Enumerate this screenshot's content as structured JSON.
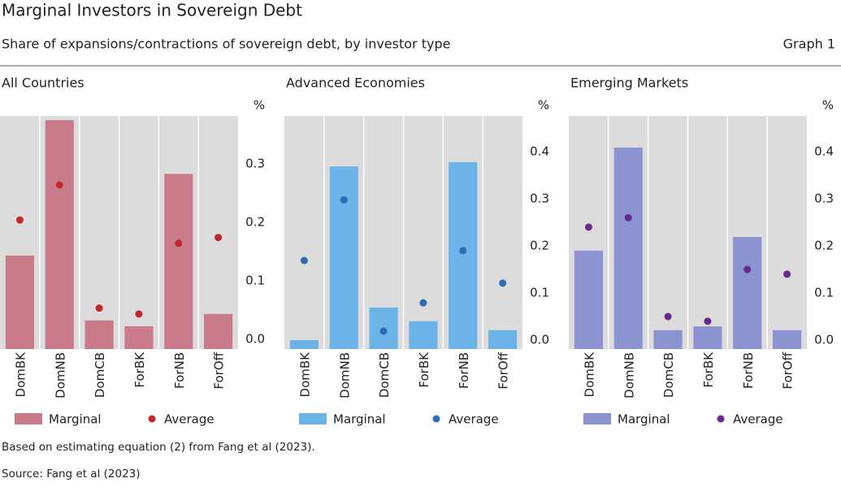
{
  "title": "Marginal Investors in Sovereign Debt",
  "subtitle": "Share of expansions/contractions of sovereign debt, by investor type",
  "graph_label": "Graph 1",
  "note": "Based on estimating equation (2) from Fang et al (2023).",
  "source": "Source: Fang et al (2023)",
  "chart_data": [
    {
      "type": "bar",
      "title": "All Countries",
      "y_unit": "%",
      "yaxis_side": "right",
      "categories": [
        "DomBK",
        "DomNB",
        "DomCB",
        "ForBK",
        "ForNB",
        "ForOff"
      ],
      "series": [
        {
          "name": "Marginal",
          "type": "bar",
          "color": "#c97b8a",
          "values": [
            0.143,
            0.375,
            0.032,
            0.022,
            0.283,
            0.043
          ]
        },
        {
          "name": "Average",
          "type": "dot",
          "color": "#c0282d",
          "values": [
            0.204,
            0.264,
            0.053,
            0.043,
            0.164,
            0.174
          ]
        }
      ],
      "ylim": [
        -0.017,
        0.382
      ],
      "yticks": [
        {
          "value": 0,
          "label": "0.0"
        },
        0.1,
        0.2,
        0.3
      ]
    },
    {
      "type": "bar",
      "title": "Advanced Economies",
      "y_unit": "%",
      "yaxis_side": "right",
      "categories": [
        "DomBK",
        "DomNB",
        "DomCB",
        "ForBK",
        "ForNB",
        "ForOff"
      ],
      "series": [
        {
          "name": "Marginal",
          "type": "bar",
          "color": "#6cb4e8",
          "values": [
            0.0,
            0.369,
            0.069,
            0.04,
            0.378,
            0.021
          ]
        },
        {
          "name": "Average",
          "type": "dot",
          "color": "#2e6db4",
          "values": [
            0.169,
            0.298,
            0.019,
            0.079,
            0.19,
            0.121
          ]
        }
      ],
      "ylim": [
        -0.019,
        0.476
      ],
      "yticks": [
        {
          "value": 0,
          "label": "0.0"
        },
        0.1,
        0.2,
        0.3,
        0.4
      ]
    },
    {
      "type": "bar",
      "title": "Emerging Markets",
      "y_unit": "%",
      "yaxis_side": "right",
      "categories": [
        "DomBK",
        "DomNB",
        "DomCB",
        "ForBK",
        "ForNB",
        "ForOff"
      ],
      "series": [
        {
          "name": "Marginal",
          "type": "bar",
          "color": "#8b93d1",
          "values": [
            0.19,
            0.409,
            0.021,
            0.029,
            0.219,
            0.021
          ]
        },
        {
          "name": "Average",
          "type": "dot",
          "color": "#6a2a8c",
          "values": [
            0.24,
            0.26,
            0.05,
            0.04,
            0.15,
            0.14
          ]
        }
      ],
      "ylim": [
        -0.019,
        0.476
      ],
      "yticks": [
        {
          "value": 0,
          "label": "0.0"
        },
        0.1,
        0.2,
        0.3,
        0.4
      ]
    }
  ]
}
